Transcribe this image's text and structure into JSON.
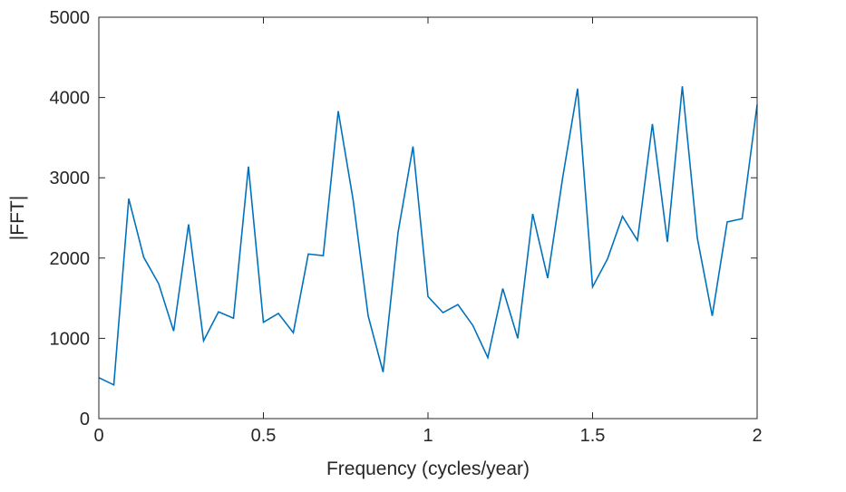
{
  "chart_data": {
    "type": "line",
    "title": "",
    "xlabel": "Frequency (cycles/year)",
    "ylabel": "|FFT|",
    "xlim": [
      0,
      2
    ],
    "ylim": [
      0,
      5000
    ],
    "xticks": [
      0,
      0.5,
      1,
      1.5,
      2
    ],
    "xtick_labels": [
      "0",
      "0.5",
      "1",
      "1.5",
      "2"
    ],
    "yticks": [
      0,
      1000,
      2000,
      3000,
      4000,
      5000
    ],
    "ytick_labels": [
      "0",
      "1000",
      "2000",
      "3000",
      "4000",
      "5000"
    ],
    "grid": false,
    "line_color": "#0072BD",
    "series": [
      {
        "x": [
          0,
          0.0455,
          0.0909,
          0.1364,
          0.1818,
          0.2273,
          0.2727,
          0.3182,
          0.3636,
          0.4091,
          0.4545,
          0.5,
          0.5455,
          0.5909,
          0.6364,
          0.6818,
          0.7273,
          0.7727,
          0.8182,
          0.8636,
          0.9091,
          0.9545,
          1.0,
          1.0455,
          1.0909,
          1.1364,
          1.1818,
          1.2273,
          1.2727,
          1.3182,
          1.3636,
          1.4091,
          1.4545,
          1.5,
          1.5455,
          1.5909,
          1.6364,
          1.6818,
          1.7273,
          1.7727,
          1.8182,
          1.8636,
          1.9091,
          1.9545,
          2.0
        ],
        "values": [
          510,
          420,
          2740,
          2010,
          1680,
          1090,
          2420,
          970,
          1330,
          1250,
          3140,
          1200,
          1310,
          1070,
          2050,
          2030,
          3830,
          2720,
          1280,
          580,
          2320,
          3390,
          1520,
          1320,
          1420,
          1160,
          760,
          1620,
          1000,
          2550,
          1750,
          3000,
          4110,
          1640,
          1990,
          2520,
          2220,
          3670,
          2200,
          4140,
          2250,
          1280,
          2450,
          2490,
          3910
        ]
      }
    ]
  }
}
